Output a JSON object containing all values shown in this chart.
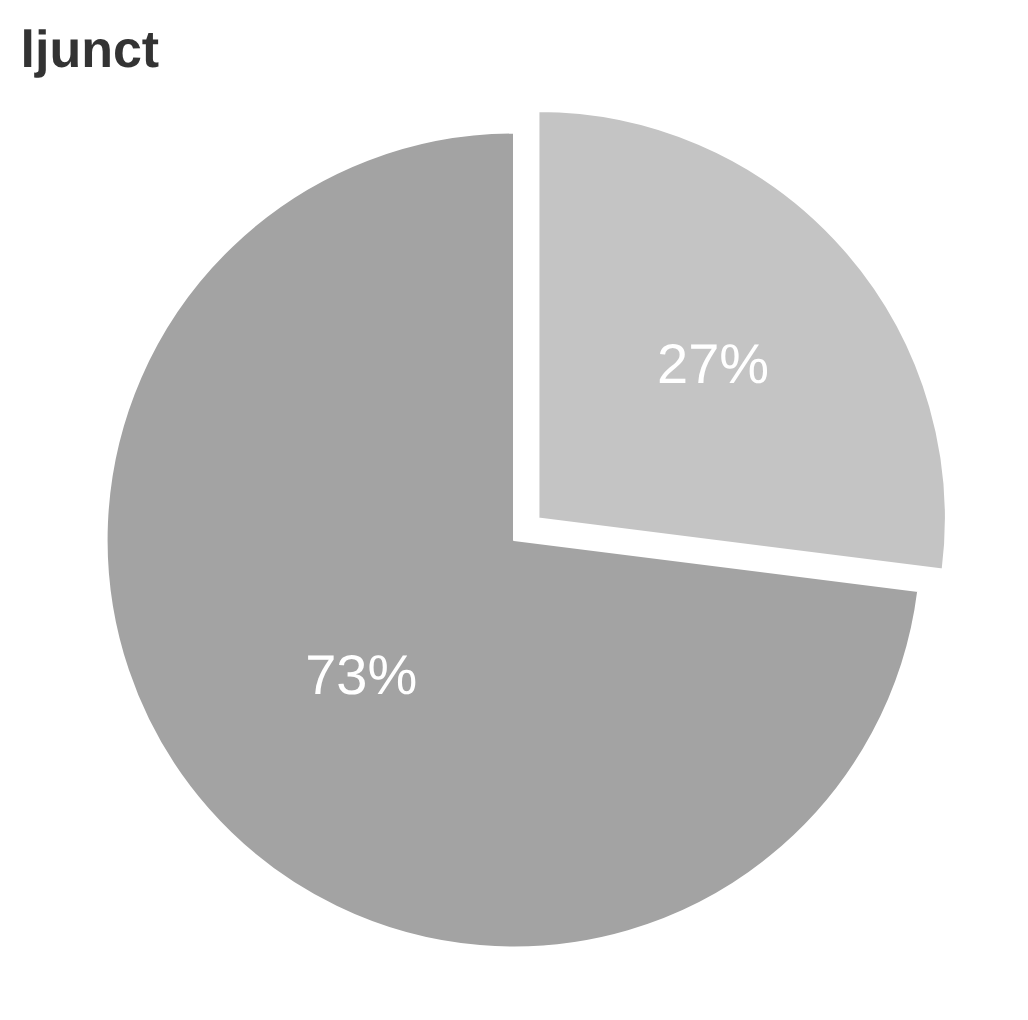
{
  "chart_data": {
    "type": "pie",
    "title": "ljunct",
    "categories": [
      null,
      null
    ],
    "values": [
      27,
      73
    ],
    "colors": [
      "#c4c4c4",
      "#a3a3a3"
    ],
    "value_labels": [
      "27%",
      "73%"
    ],
    "legend": false
  }
}
